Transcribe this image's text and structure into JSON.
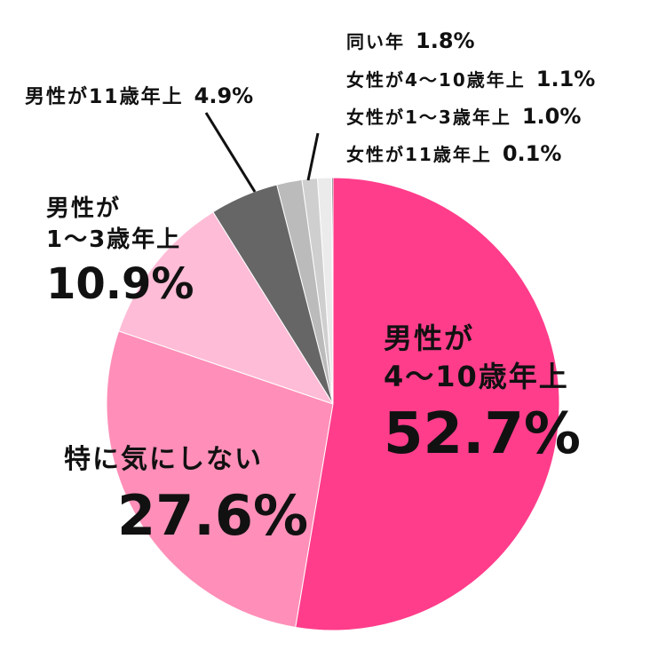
{
  "chart_data": {
    "type": "pie",
    "categories": [
      "男性が\n4〜10歳年上",
      "特に気にしない",
      "男性が\n1〜3歳年上",
      "男性が11歳年上",
      "同い年",
      "女性が4〜10歳年上",
      "女性が1〜3歳年上",
      "女性が11歳年上"
    ],
    "values": [
      52.7,
      27.6,
      10.9,
      4.9,
      1.8,
      1.1,
      1.0,
      0.1
    ],
    "value_labels": [
      "52.7%",
      "27.6%",
      "10.9%",
      "4.9%",
      "1.8%",
      "1.1%",
      "1.0%",
      "0.1%"
    ],
    "colors": [
      "#ff3d8b",
      "#ff8fb8",
      "#ffbcd6",
      "#666666",
      "#bbbbbb",
      "#cfcfcf",
      "#ebebeb",
      "#444444"
    ]
  }
}
